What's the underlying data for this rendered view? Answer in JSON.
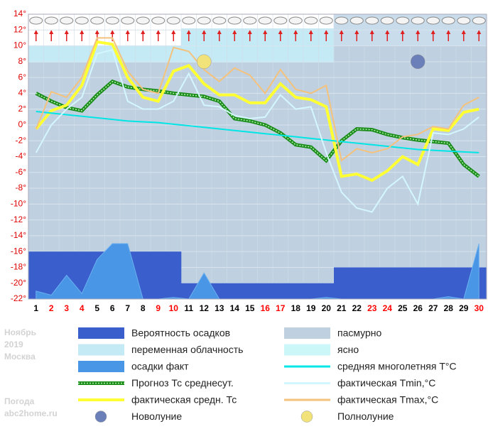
{
  "chart_data": {
    "type": "weather",
    "month": "Ноябрь",
    "year": "2019",
    "city": "Москва",
    "site_name": "Погода",
    "site": "abc2home.ru",
    "categories": [
      "1",
      "2",
      "3",
      "4",
      "5",
      "6",
      "7",
      "8",
      "9",
      "10",
      "11",
      "12",
      "13",
      "14",
      "15",
      "16",
      "17",
      "18",
      "19",
      "20",
      "21",
      "22",
      "23",
      "24",
      "25",
      "26",
      "27",
      "28",
      "29",
      "30"
    ],
    "category_colors": [
      "#000000",
      "#ff0000",
      "#ff0000",
      "#ff0000",
      "#000000",
      "#000000",
      "#000000",
      "#000000",
      "#ff0000",
      "#ff0000",
      "#000000",
      "#000000",
      "#000000",
      "#000000",
      "#000000",
      "#ff0000",
      "#ff0000",
      "#000000",
      "#000000",
      "#000000",
      "#000000",
      "#000000",
      "#ff0000",
      "#ff0000",
      "#000000",
      "#000000",
      "#000000",
      "#000000",
      "#000000",
      "#ff0000"
    ],
    "ylim": [
      -22,
      14
    ],
    "yticks": [
      {
        "value": 14,
        "label": "14°"
      },
      {
        "value": 12,
        "label": "12°"
      },
      {
        "value": 10,
        "label": "10°"
      },
      {
        "value": 8,
        "label": "8°"
      },
      {
        "value": 6,
        "label": "6°"
      },
      {
        "value": 4,
        "label": "4°"
      },
      {
        "value": 2,
        "label": "2°"
      },
      {
        "value": 0,
        "label": "0°"
      },
      {
        "value": -2,
        "label": "-2°"
      },
      {
        "value": -4,
        "label": "-4°"
      },
      {
        "value": -6,
        "label": "-6°"
      },
      {
        "value": -8,
        "label": "-8°"
      },
      {
        "value": -10,
        "label": "-10°"
      },
      {
        "value": -12,
        "label": "-12°"
      },
      {
        "value": -14,
        "label": "-14°"
      },
      {
        "value": -16,
        "label": "-16°"
      },
      {
        "value": -18,
        "label": "-18°"
      },
      {
        "value": -20,
        "label": "-20°"
      },
      {
        "value": -22,
        "label": "-22°"
      }
    ],
    "grid": true,
    "series": [
      {
        "name": "Вероятность осадков",
        "kind": "step",
        "color": "#3a5fcd",
        "values": [
          -16,
          -16,
          -16,
          -16,
          -16,
          -16,
          -16,
          -16,
          -16,
          -16,
          -20,
          -20,
          -20,
          -20,
          -20,
          -20,
          -20,
          -20,
          -20,
          -20,
          -18,
          -18,
          -18,
          -18,
          -18,
          -18,
          -18,
          -18,
          -18,
          -18
        ]
      },
      {
        "name": "переменная облачность",
        "kind": "box",
        "color": "#c4eaf6"
      },
      {
        "name": "осадки факт",
        "kind": "area",
        "color": "#4a96e6",
        "values": [
          -21,
          -21.5,
          -19,
          -21.3,
          -17,
          -15,
          -15,
          -22,
          -22,
          -21.8,
          -22,
          -18.7,
          -22,
          -22,
          -22,
          -22,
          -22,
          -22,
          -22,
          -21.8,
          -22,
          -22,
          -22,
          -22,
          -22,
          -22,
          -22,
          -21.7,
          -22,
          -15
        ]
      },
      {
        "name": "Прогноз Тс среднесут.",
        "kind": "line",
        "style": "dotted",
        "color": "#1a8c1a",
        "values": [
          4,
          3,
          2.2,
          1.8,
          3.8,
          5.5,
          4.8,
          4.5,
          4.3,
          4,
          3.8,
          3.6,
          3,
          0.8,
          0.5,
          0,
          -1,
          -2.5,
          -2.8,
          -4.5,
          -2,
          -0.5,
          -0.6,
          -1.2,
          -1.6,
          -1.9,
          -2.1,
          -2.3,
          -5,
          -6.5
        ]
      },
      {
        "name": "фактическая средн. Тс",
        "kind": "line",
        "style": "thick",
        "color": "#ffff33",
        "values": [
          -0.5,
          1.8,
          2.5,
          5,
          10.5,
          10.2,
          6,
          3.5,
          3,
          6.8,
          7.5,
          5.2,
          3.8,
          3.8,
          2.8,
          2.8,
          5.2,
          3.5,
          3.2,
          2.3,
          -6.5,
          -6.2,
          -7,
          -5.8,
          -4,
          -5,
          -0.5,
          -0.7,
          1.6,
          2
        ]
      },
      {
        "name": "Новолуние",
        "kind": "moon",
        "color": "#6b7fb8",
        "day": 26,
        "value": 8
      },
      {
        "name": "пасмурно",
        "kind": "box",
        "color": "#bfd1e0"
      },
      {
        "name": "ясно",
        "kind": "box",
        "color": "#ccf7f9"
      },
      {
        "name": "средняя многолетняя T°C",
        "kind": "line",
        "style": "thin",
        "color": "#00e5e5",
        "values": [
          1.7,
          1.5,
          1.3,
          1.1,
          0.9,
          0.7,
          0.5,
          0.4,
          0.3,
          0.1,
          -0.1,
          -0.3,
          -0.5,
          -0.7,
          -0.9,
          -1.1,
          -1.3,
          -1.5,
          -1.7,
          -1.9,
          -2.1,
          -2.3,
          -2.5,
          -2.7,
          -2.9,
          -3.1,
          -3.2,
          -3.3,
          -3.4,
          -3.5
        ]
      },
      {
        "name": "фактическая Tmin,°C",
        "kind": "line",
        "style": "thin",
        "color": "#d4f7ff",
        "values": [
          -3.5,
          0,
          2,
          3.5,
          9,
          9.5,
          3,
          2,
          2,
          3,
          6.5,
          2.5,
          2.3,
          1.2,
          0.8,
          1,
          3.8,
          2,
          2.3,
          -3.5,
          -8.5,
          -10.5,
          -11,
          -8,
          -6.5,
          -10,
          -1,
          -1.2,
          -0.5,
          1
        ]
      },
      {
        "name": "фактическая Tmax,°C",
        "kind": "line",
        "style": "thin",
        "color": "#f4c27c",
        "values": [
          -0.5,
          4.2,
          3.5,
          6,
          11,
          11,
          6.8,
          4.5,
          4,
          9.8,
          9.3,
          7,
          5.5,
          7.2,
          6.3,
          4,
          7,
          4.5,
          4,
          5,
          -4.5,
          -3,
          -3.5,
          -3,
          -1.5,
          -1.2,
          -0.2,
          -0.5,
          2.5,
          3.5
        ]
      },
      {
        "name": "Полнолуние",
        "kind": "moon",
        "color": "#f2e27a",
        "day": 12,
        "value": 8
      }
    ]
  }
}
